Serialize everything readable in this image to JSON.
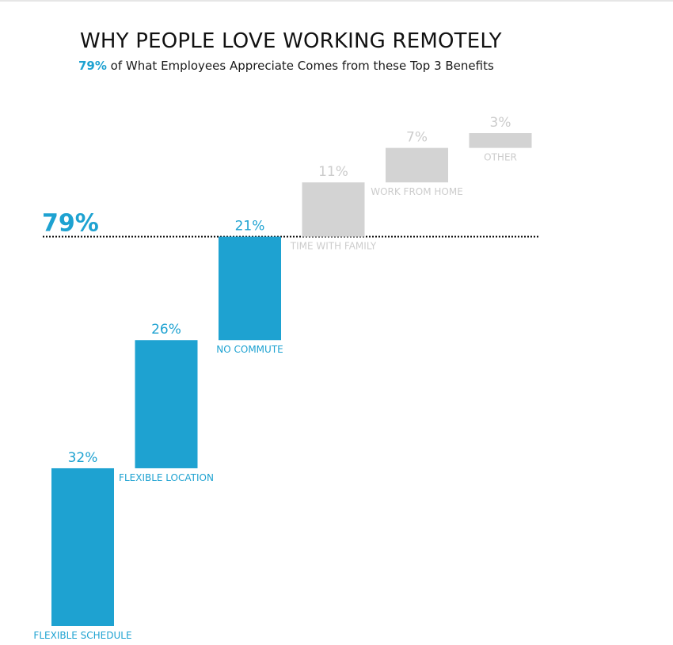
{
  "title": "WHY PEOPLE LOVE WORKING REMOTELY",
  "subtitle": {
    "highlight": "79%",
    "rest": " of What Employees Appreciate Comes from these Top 3 Benefits"
  },
  "colors": {
    "highlight": "#1ea2d1",
    "muted_bar": "#d3d3d3",
    "muted_text": "#cccccc",
    "reference_line": "#111111"
  },
  "chart_data": {
    "type": "bar",
    "subtype": "waterfall",
    "title": "WHY PEOPLE LOVE WORKING REMOTELY",
    "categories": [
      "FLEXIBLE SCHEDULE",
      "FLEXIBLE LOCATION",
      "NO COMMUTE",
      "TIME WITH FAMILY",
      "WORK FROM HOME",
      "OTHER"
    ],
    "values": [
      32,
      26,
      21,
      11,
      7,
      3
    ],
    "value_labels": [
      "32%",
      "26%",
      "21%",
      "11%",
      "7%",
      "3%"
    ],
    "highlighted": [
      true,
      true,
      true,
      false,
      false,
      false
    ],
    "ylim": [
      0,
      100
    ],
    "reference_line": {
      "value": 79,
      "label": "79%"
    },
    "grid": false,
    "legend": "none"
  }
}
